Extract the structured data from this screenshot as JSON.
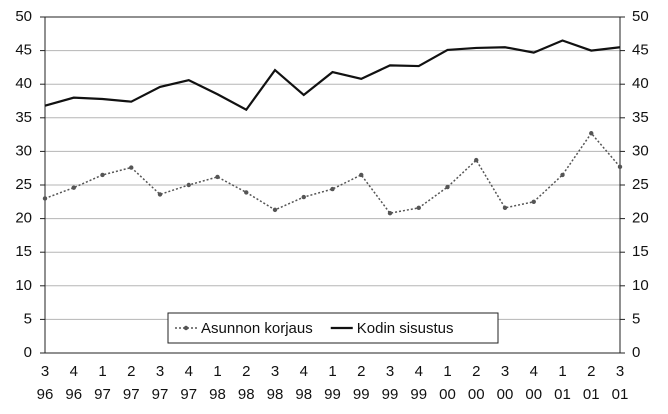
{
  "chart_data": {
    "type": "line",
    "categories": [
      [
        "3",
        "96"
      ],
      [
        "4",
        "96"
      ],
      [
        "1",
        "97"
      ],
      [
        "2",
        "97"
      ],
      [
        "3",
        "97"
      ],
      [
        "4",
        "97"
      ],
      [
        "1",
        "98"
      ],
      [
        "2",
        "98"
      ],
      [
        "3",
        "98"
      ],
      [
        "4",
        "98"
      ],
      [
        "1",
        "99"
      ],
      [
        "2",
        "99"
      ],
      [
        "3",
        "99"
      ],
      [
        "4",
        "99"
      ],
      [
        "1",
        "00"
      ],
      [
        "2",
        "00"
      ],
      [
        "3",
        "00"
      ],
      [
        "4",
        "00"
      ],
      [
        "1",
        "01"
      ],
      [
        "2",
        "01"
      ],
      [
        "3",
        "01"
      ]
    ],
    "series": [
      {
        "name": "Asunnon korjaus",
        "color": "#555555",
        "values": [
          23.0,
          24.6,
          26.5,
          27.6,
          23.6,
          25.0,
          26.2,
          23.9,
          21.3,
          23.2,
          24.4,
          26.5,
          20.8,
          21.6,
          24.7,
          28.7,
          21.6,
          22.5,
          26.5,
          32.7,
          27.7
        ]
      },
      {
        "name": "Kodin sisustus",
        "color": "#111111",
        "values": [
          36.8,
          38.0,
          37.8,
          37.4,
          39.6,
          40.6,
          38.5,
          36.2,
          42.1,
          38.4,
          41.8,
          40.8,
          42.8,
          42.7,
          45.1,
          45.4,
          45.5,
          44.7,
          46.5,
          45.0,
          45.5
        ]
      }
    ],
    "ylim": [
      0,
      50
    ],
    "yticks": [
      0,
      5,
      10,
      15,
      20,
      25,
      30,
      35,
      40,
      45,
      50
    ],
    "y2lim": [
      0,
      50
    ],
    "y2ticks": [
      0,
      5,
      10,
      15,
      20,
      25,
      30,
      35,
      40,
      45,
      50
    ],
    "grid": true,
    "legend": "bottom"
  }
}
